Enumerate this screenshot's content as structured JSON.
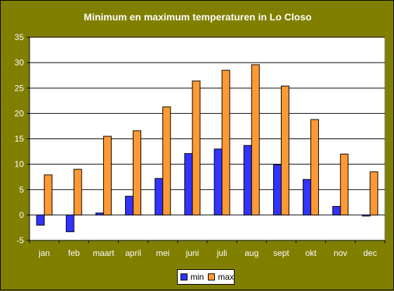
{
  "chart_data": {
    "type": "bar",
    "title": "Minimum en maximum temperaturen in Lo Closo",
    "xlabel": "",
    "ylabel": "",
    "categories": [
      "jan",
      "feb",
      "maart",
      "april",
      "mei",
      "juni",
      "juli",
      "aug",
      "sept",
      "okt",
      "nov",
      "dec"
    ],
    "series": [
      {
        "name": "min",
        "color": "#3333ff",
        "values": [
          -2.0,
          -3.3,
          0.4,
          3.7,
          7.2,
          12.1,
          13.0,
          13.7,
          9.9,
          7.0,
          1.7,
          -0.2
        ]
      },
      {
        "name": "max",
        "color": "#ff9933",
        "values": [
          7.9,
          9.0,
          15.5,
          16.6,
          21.3,
          26.4,
          28.5,
          29.6,
          25.4,
          18.8,
          12.0,
          8.5
        ]
      }
    ],
    "ylim": [
      -5,
      35
    ],
    "yticks": [
      -5,
      0,
      5,
      10,
      15,
      20,
      25,
      30,
      35
    ],
    "grid": true,
    "legend_position": "bottom",
    "plot_background": "#ffffff",
    "chart_background": "#807f00"
  }
}
